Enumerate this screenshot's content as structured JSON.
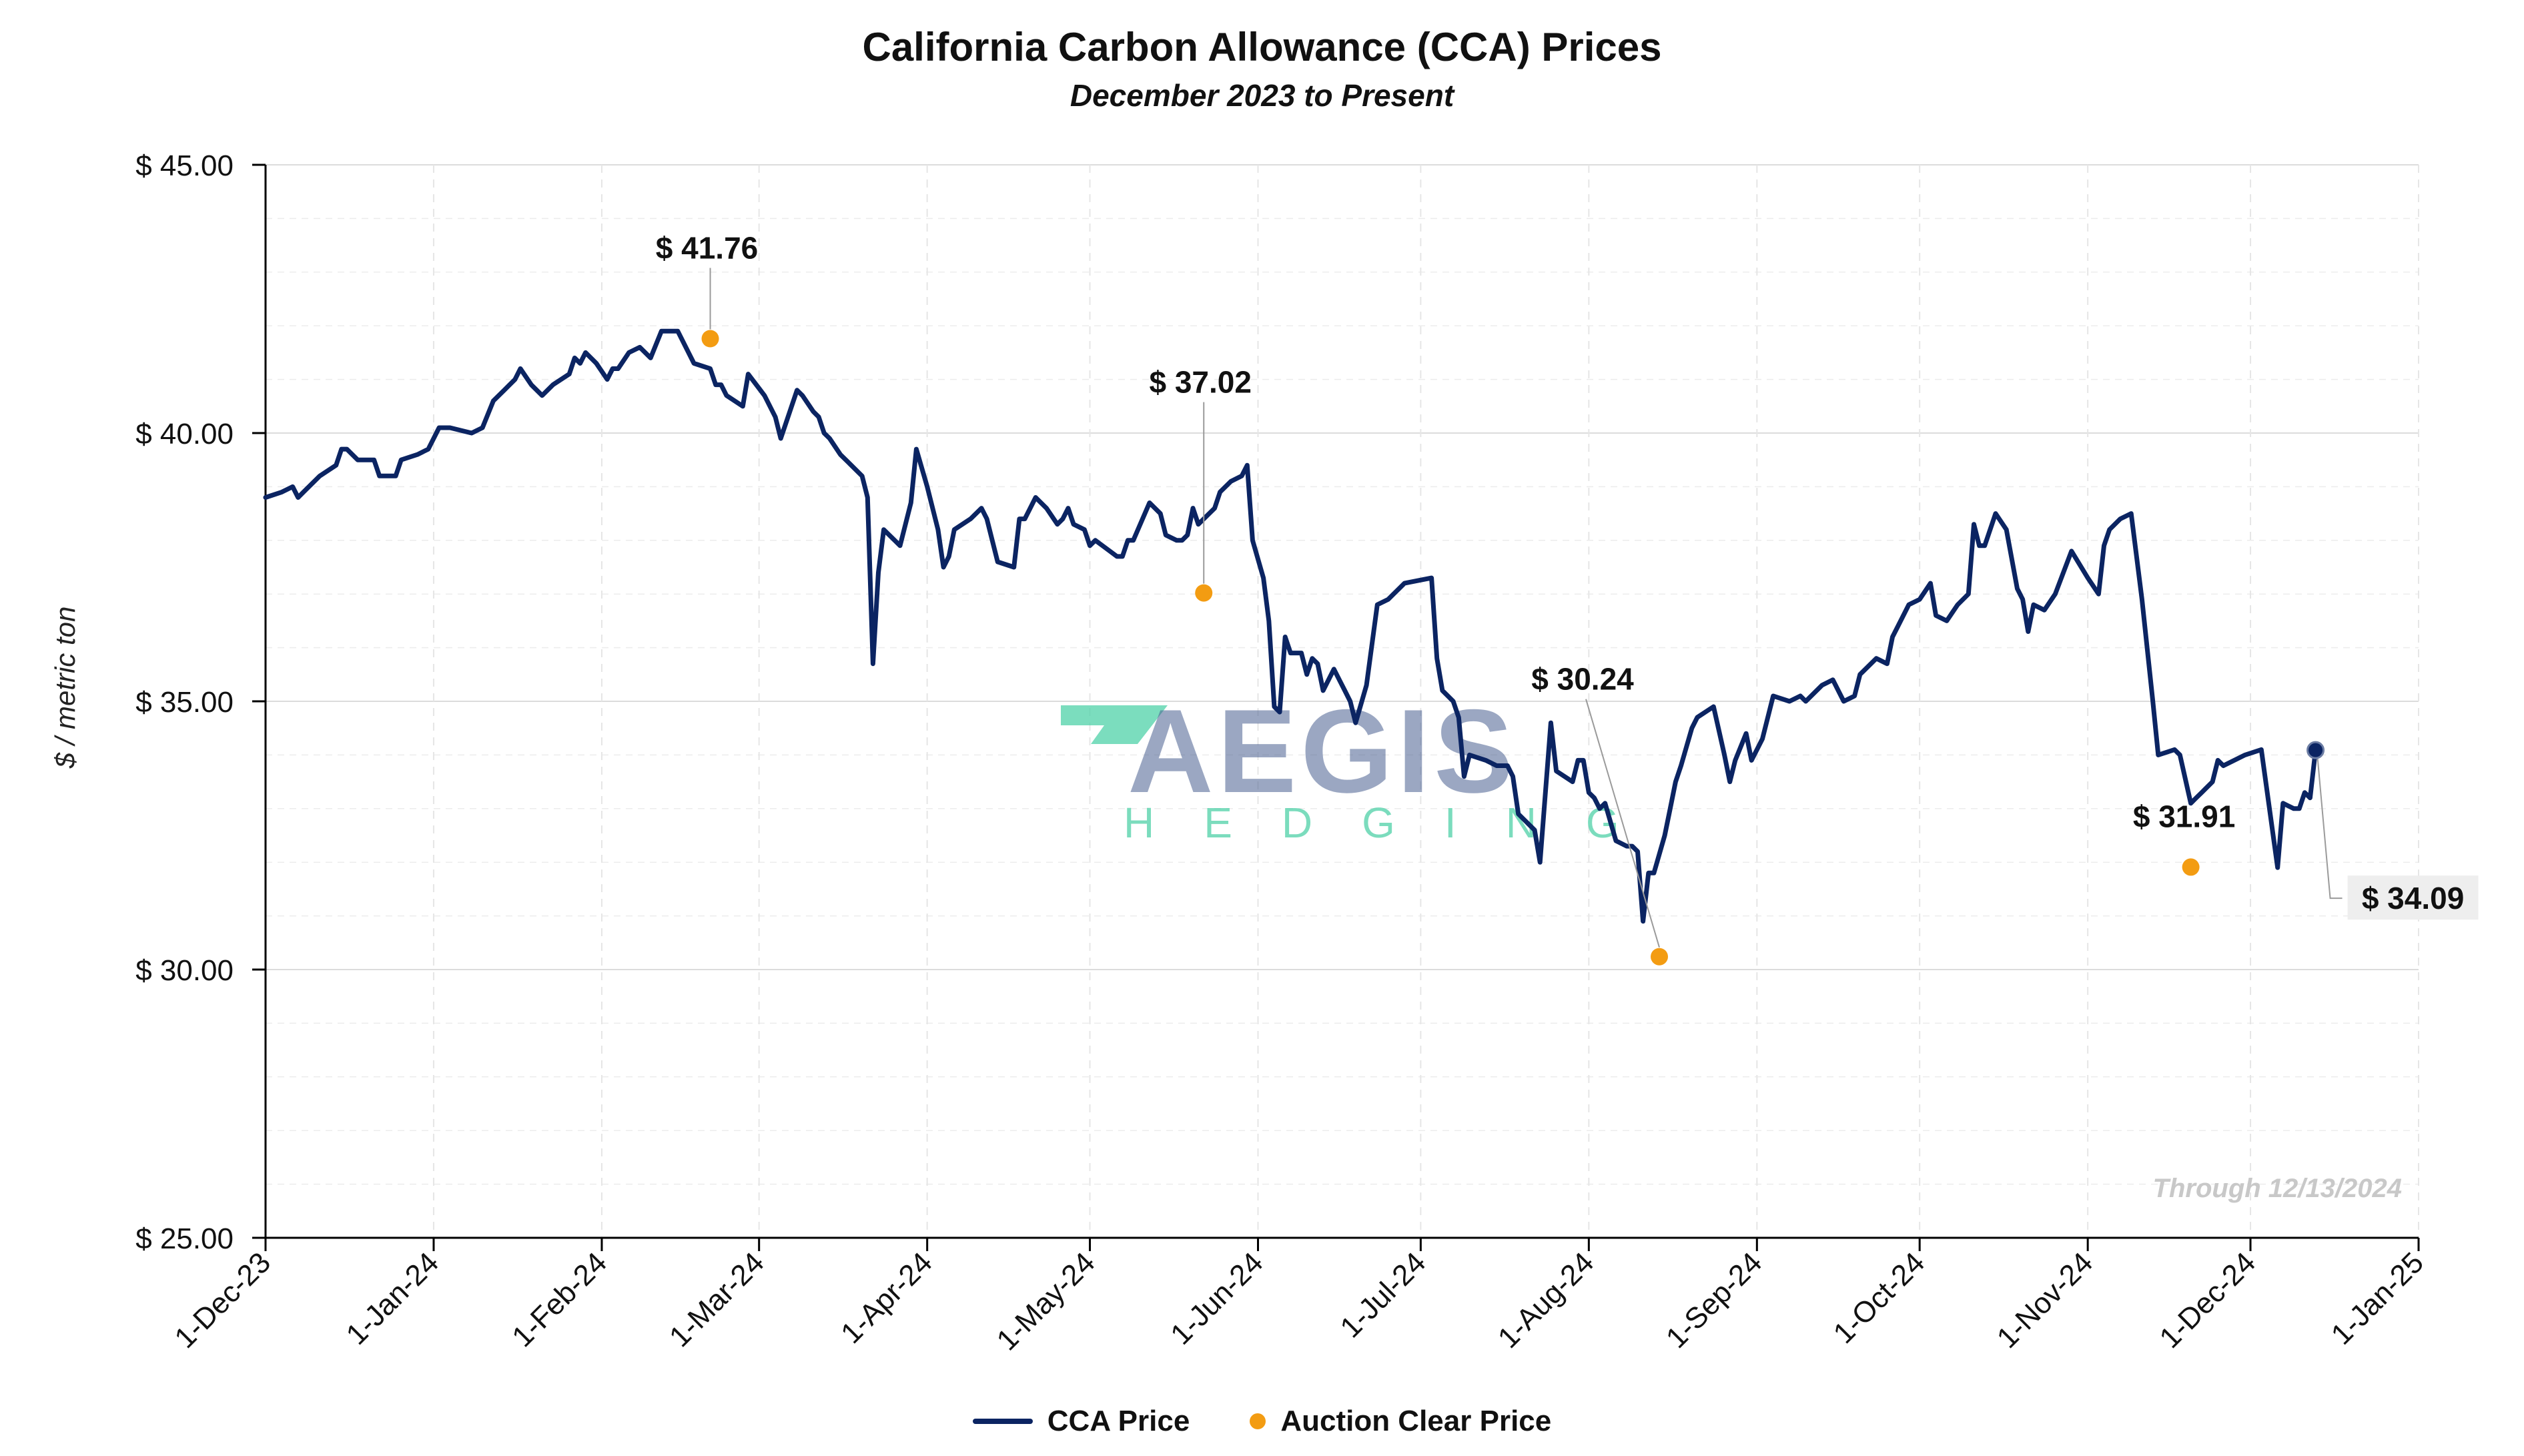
{
  "title": "California Carbon Allowance (CCA) Prices",
  "subtitle": "December 2023 to Present",
  "ylabel": "$ / metric ton",
  "through_note": "Through 12/13/2024",
  "watermark": {
    "main": "AEGIS",
    "sub": "HEDGING"
  },
  "colors": {
    "line": "#0b2462",
    "auction": "#f39c12",
    "watermark_main": "#4a6191",
    "watermark_accent": "#4fd1a8"
  },
  "legend": {
    "line_label": "CCA Price",
    "dot_label": "Auction Clear Price"
  },
  "chart_data": {
    "type": "line",
    "title": "California Carbon Allowance (CCA) Prices",
    "subtitle": "December 2023 to Present",
    "xlabel": "",
    "ylabel": "$ / metric ton",
    "ylim": [
      25,
      45
    ],
    "xlim": [
      "2023-12-01",
      "2025-01-01"
    ],
    "y_ticks": [
      25,
      30,
      35,
      40,
      45
    ],
    "y_tick_labels": [
      "$ 25.00",
      "$ 30.00",
      "$ 35.00",
      "$ 40.00",
      "$ 45.00"
    ],
    "x_ticks": [
      "2023-12-01",
      "2024-01-01",
      "2024-02-01",
      "2024-03-01",
      "2024-04-01",
      "2024-05-01",
      "2024-06-01",
      "2024-07-01",
      "2024-08-01",
      "2024-09-01",
      "2024-10-01",
      "2024-11-01",
      "2024-12-01",
      "2025-01-01"
    ],
    "x_tick_labels": [
      "1-Dec-23",
      "1-Jan-24",
      "1-Feb-24",
      "1-Mar-24",
      "1-Apr-24",
      "1-May-24",
      "1-Jun-24",
      "1-Jul-24",
      "1-Aug-24",
      "1-Sep-24",
      "1-Oct-24",
      "1-Nov-24",
      "1-Dec-24",
      "1-Jan-25"
    ],
    "grid": true,
    "legend_position": "bottom",
    "series": [
      {
        "name": "CCA Price",
        "points": [
          [
            "2023-12-01",
            38.8
          ],
          [
            "2023-12-04",
            38.9
          ],
          [
            "2023-12-06",
            39.0
          ],
          [
            "2023-12-07",
            38.8
          ],
          [
            "2023-12-08",
            38.9
          ],
          [
            "2023-12-11",
            39.2
          ],
          [
            "2023-12-14",
            39.4
          ],
          [
            "2023-12-15",
            39.7
          ],
          [
            "2023-12-16",
            39.7
          ],
          [
            "2023-12-18",
            39.5
          ],
          [
            "2023-12-21",
            39.5
          ],
          [
            "2023-12-22",
            39.2
          ],
          [
            "2023-12-25",
            39.2
          ],
          [
            "2023-12-26",
            39.5
          ],
          [
            "2023-12-29",
            39.6
          ],
          [
            "2023-12-31",
            39.7
          ],
          [
            "2024-01-02",
            40.1
          ],
          [
            "2024-01-04",
            40.1
          ],
          [
            "2024-01-08",
            40.0
          ],
          [
            "2024-01-10",
            40.1
          ],
          [
            "2024-01-12",
            40.6
          ],
          [
            "2024-01-14",
            40.8
          ],
          [
            "2024-01-16",
            41.0
          ],
          [
            "2024-01-17",
            41.2
          ],
          [
            "2024-01-19",
            40.9
          ],
          [
            "2024-01-21",
            40.7
          ],
          [
            "2024-01-23",
            40.9
          ],
          [
            "2024-01-26",
            41.1
          ],
          [
            "2024-01-27",
            41.4
          ],
          [
            "2024-01-28",
            41.3
          ],
          [
            "2024-01-29",
            41.5
          ],
          [
            "2024-01-31",
            41.3
          ],
          [
            "2024-02-02",
            41.0
          ],
          [
            "2024-02-03",
            41.2
          ],
          [
            "2024-02-04",
            41.2
          ],
          [
            "2024-02-06",
            41.5
          ],
          [
            "2024-02-08",
            41.6
          ],
          [
            "2024-02-10",
            41.4
          ],
          [
            "2024-02-12",
            41.9
          ],
          [
            "2024-02-15",
            41.9
          ],
          [
            "2024-02-17",
            41.5
          ],
          [
            "2024-02-18",
            41.3
          ],
          [
            "2024-02-21",
            41.2
          ],
          [
            "2024-02-22",
            40.9
          ],
          [
            "2024-02-23",
            40.9
          ],
          [
            "2024-02-24",
            40.7
          ],
          [
            "2024-02-27",
            40.5
          ],
          [
            "2024-02-28",
            41.1
          ],
          [
            "2024-03-02",
            40.7
          ],
          [
            "2024-03-04",
            40.3
          ],
          [
            "2024-03-05",
            39.9
          ],
          [
            "2024-03-07",
            40.5
          ],
          [
            "2024-03-08",
            40.8
          ],
          [
            "2024-03-09",
            40.7
          ],
          [
            "2024-03-11",
            40.4
          ],
          [
            "2024-03-12",
            40.3
          ],
          [
            "2024-03-13",
            40.0
          ],
          [
            "2024-03-14",
            39.9
          ],
          [
            "2024-03-16",
            39.6
          ],
          [
            "2024-03-18",
            39.4
          ],
          [
            "2024-03-20",
            39.2
          ],
          [
            "2024-03-21",
            38.8
          ],
          [
            "2024-03-22",
            35.7
          ],
          [
            "2024-03-23",
            37.4
          ],
          [
            "2024-03-24",
            38.2
          ],
          [
            "2024-03-26",
            38.0
          ],
          [
            "2024-03-27",
            37.9
          ],
          [
            "2024-03-29",
            38.7
          ],
          [
            "2024-03-30",
            39.7
          ],
          [
            "2024-04-01",
            39.0
          ],
          [
            "2024-04-03",
            38.2
          ],
          [
            "2024-04-04",
            37.5
          ],
          [
            "2024-04-05",
            37.7
          ],
          [
            "2024-04-06",
            38.2
          ],
          [
            "2024-04-09",
            38.4
          ],
          [
            "2024-04-11",
            38.6
          ],
          [
            "2024-04-12",
            38.4
          ],
          [
            "2024-04-14",
            37.6
          ],
          [
            "2024-04-17",
            37.5
          ],
          [
            "2024-04-18",
            38.4
          ],
          [
            "2024-04-19",
            38.4
          ],
          [
            "2024-04-21",
            38.8
          ],
          [
            "2024-04-23",
            38.6
          ],
          [
            "2024-04-25",
            38.3
          ],
          [
            "2024-04-26",
            38.4
          ],
          [
            "2024-04-27",
            38.6
          ],
          [
            "2024-04-28",
            38.3
          ],
          [
            "2024-04-30",
            38.2
          ],
          [
            "2024-05-01",
            37.9
          ],
          [
            "2024-05-02",
            38.0
          ],
          [
            "2024-05-06",
            37.7
          ],
          [
            "2024-05-07",
            37.7
          ],
          [
            "2024-05-08",
            38.0
          ],
          [
            "2024-05-09",
            38.0
          ],
          [
            "2024-05-12",
            38.7
          ],
          [
            "2024-05-14",
            38.5
          ],
          [
            "2024-05-15",
            38.1
          ],
          [
            "2024-05-17",
            38.0
          ],
          [
            "2024-05-18",
            38.0
          ],
          [
            "2024-05-19",
            38.1
          ],
          [
            "2024-05-20",
            38.6
          ],
          [
            "2024-05-21",
            38.3
          ],
          [
            "2024-05-22",
            38.4
          ],
          [
            "2024-05-24",
            38.6
          ],
          [
            "2024-05-25",
            38.9
          ],
          [
            "2024-05-27",
            39.1
          ],
          [
            "2024-05-29",
            39.2
          ],
          [
            "2024-05-30",
            39.4
          ],
          [
            "2024-05-31",
            38.0
          ],
          [
            "2024-06-02",
            37.3
          ],
          [
            "2024-06-03",
            36.5
          ],
          [
            "2024-06-04",
            34.9
          ],
          [
            "2024-06-05",
            34.8
          ],
          [
            "2024-06-06",
            36.2
          ],
          [
            "2024-06-07",
            35.9
          ],
          [
            "2024-06-09",
            35.9
          ],
          [
            "2024-06-10",
            35.5
          ],
          [
            "2024-06-11",
            35.8
          ],
          [
            "2024-06-12",
            35.7
          ],
          [
            "2024-06-13",
            35.2
          ],
          [
            "2024-06-15",
            35.6
          ],
          [
            "2024-06-16",
            35.4
          ],
          [
            "2024-06-17",
            35.2
          ],
          [
            "2024-06-18",
            35.0
          ],
          [
            "2024-06-19",
            34.6
          ],
          [
            "2024-06-21",
            35.3
          ],
          [
            "2024-06-23",
            36.8
          ],
          [
            "2024-06-25",
            36.9
          ],
          [
            "2024-06-27",
            37.1
          ],
          [
            "2024-06-28",
            37.2
          ],
          [
            "2024-07-03",
            37.3
          ],
          [
            "2024-07-04",
            35.8
          ],
          [
            "2024-07-05",
            35.2
          ],
          [
            "2024-07-07",
            35.0
          ],
          [
            "2024-07-08",
            34.7
          ],
          [
            "2024-07-09",
            33.6
          ],
          [
            "2024-07-10",
            34.0
          ],
          [
            "2024-07-13",
            33.9
          ],
          [
            "2024-07-15",
            33.8
          ],
          [
            "2024-07-17",
            33.8
          ],
          [
            "2024-07-18",
            33.6
          ],
          [
            "2024-07-19",
            32.9
          ],
          [
            "2024-07-22",
            32.6
          ],
          [
            "2024-07-23",
            32.0
          ],
          [
            "2024-07-25",
            34.6
          ],
          [
            "2024-07-26",
            33.7
          ],
          [
            "2024-07-29",
            33.5
          ],
          [
            "2024-07-30",
            33.9
          ],
          [
            "2024-07-31",
            33.9
          ],
          [
            "2024-08-01",
            33.3
          ],
          [
            "2024-08-02",
            33.2
          ],
          [
            "2024-08-03",
            33.0
          ],
          [
            "2024-08-04",
            33.1
          ],
          [
            "2024-08-06",
            32.4
          ],
          [
            "2024-08-08",
            32.3
          ],
          [
            "2024-08-09",
            32.3
          ],
          [
            "2024-08-10",
            32.2
          ],
          [
            "2024-08-11",
            30.9
          ],
          [
            "2024-08-12",
            31.8
          ],
          [
            "2024-08-13",
            31.8
          ],
          [
            "2024-08-15",
            32.5
          ],
          [
            "2024-08-16",
            33.0
          ],
          [
            "2024-08-17",
            33.5
          ],
          [
            "2024-08-18",
            33.8
          ],
          [
            "2024-08-20",
            34.5
          ],
          [
            "2024-08-21",
            34.7
          ],
          [
            "2024-08-24",
            34.9
          ],
          [
            "2024-08-26",
            34.0
          ],
          [
            "2024-08-27",
            33.5
          ],
          [
            "2024-08-28",
            33.9
          ],
          [
            "2024-08-30",
            34.4
          ],
          [
            "2024-08-31",
            33.9
          ],
          [
            "2024-09-02",
            34.3
          ],
          [
            "2024-09-04",
            35.1
          ],
          [
            "2024-09-07",
            35.0
          ],
          [
            "2024-09-09",
            35.1
          ],
          [
            "2024-09-10",
            35.0
          ],
          [
            "2024-09-13",
            35.3
          ],
          [
            "2024-09-15",
            35.4
          ],
          [
            "2024-09-17",
            35.0
          ],
          [
            "2024-09-19",
            35.1
          ],
          [
            "2024-09-20",
            35.5
          ],
          [
            "2024-09-23",
            35.8
          ],
          [
            "2024-09-25",
            35.7
          ],
          [
            "2024-09-26",
            36.2
          ],
          [
            "2024-09-27",
            36.4
          ],
          [
            "2024-09-29",
            36.8
          ],
          [
            "2024-10-01",
            36.9
          ],
          [
            "2024-10-03",
            37.2
          ],
          [
            "2024-10-04",
            36.6
          ],
          [
            "2024-10-06",
            36.5
          ],
          [
            "2024-10-08",
            36.8
          ],
          [
            "2024-10-10",
            37.0
          ],
          [
            "2024-10-11",
            38.3
          ],
          [
            "2024-10-12",
            37.9
          ],
          [
            "2024-10-13",
            37.9
          ],
          [
            "2024-10-15",
            38.5
          ],
          [
            "2024-10-17",
            38.2
          ],
          [
            "2024-10-19",
            37.1
          ],
          [
            "2024-10-20",
            36.9
          ],
          [
            "2024-10-21",
            36.3
          ],
          [
            "2024-10-22",
            36.8
          ],
          [
            "2024-10-24",
            36.7
          ],
          [
            "2024-10-26",
            37.0
          ],
          [
            "2024-10-29",
            37.8
          ],
          [
            "2024-11-01",
            37.3
          ],
          [
            "2024-11-03",
            37.0
          ],
          [
            "2024-11-04",
            37.9
          ],
          [
            "2024-11-05",
            38.2
          ],
          [
            "2024-11-07",
            38.4
          ],
          [
            "2024-11-09",
            38.5
          ],
          [
            "2024-11-11",
            36.9
          ],
          [
            "2024-11-13",
            35.0
          ],
          [
            "2024-11-14",
            34.0
          ],
          [
            "2024-11-17",
            34.1
          ],
          [
            "2024-11-18",
            34.0
          ],
          [
            "2024-11-20",
            33.1
          ],
          [
            "2024-11-21",
            33.2
          ],
          [
            "2024-11-22",
            33.3
          ],
          [
            "2024-11-24",
            33.5
          ],
          [
            "2024-11-25",
            33.9
          ],
          [
            "2024-11-26",
            33.8
          ],
          [
            "2024-11-30",
            34.0
          ],
          [
            "2024-12-03",
            34.1
          ],
          [
            "2024-12-06",
            31.9
          ],
          [
            "2024-12-07",
            33.1
          ],
          [
            "2024-12-09",
            33.0
          ],
          [
            "2024-12-10",
            33.0
          ],
          [
            "2024-12-11",
            33.3
          ],
          [
            "2024-12-12",
            33.2
          ],
          [
            "2024-12-13",
            34.09
          ]
        ]
      },
      {
        "name": "Auction Clear Price",
        "points": [
          {
            "date": "2024-02-21",
            "value": 41.76,
            "label": "$ 41.76"
          },
          {
            "date": "2024-05-22",
            "value": 37.02,
            "label": "$ 37.02"
          },
          {
            "date": "2024-08-14",
            "value": 30.24,
            "label": "$ 30.24"
          },
          {
            "date": "2024-11-20",
            "value": 31.91,
            "label": "$ 31.91"
          }
        ]
      }
    ],
    "last_value": {
      "date": "2024-12-13",
      "value": 34.09,
      "label": "$ 34.09"
    }
  }
}
